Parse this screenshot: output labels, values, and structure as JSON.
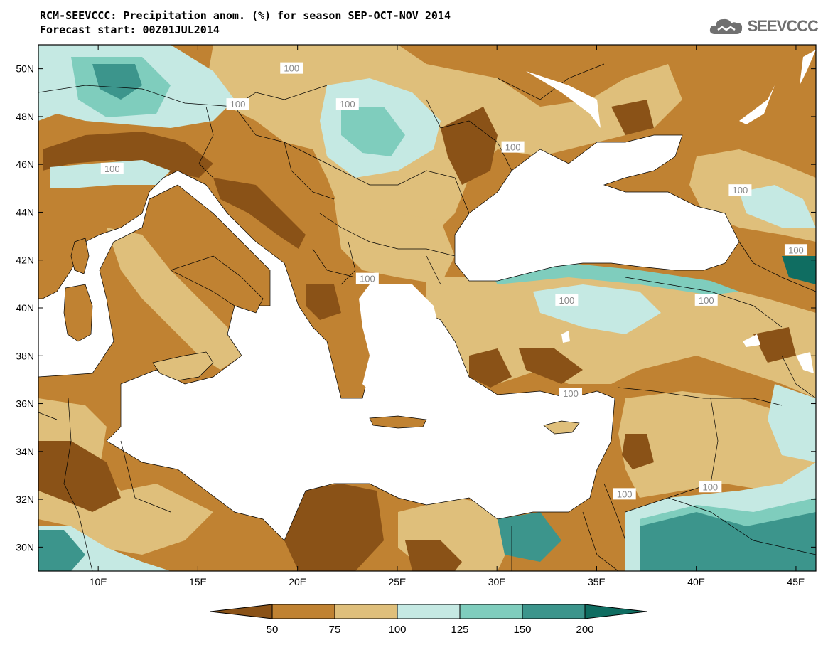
{
  "title": {
    "line1": "RCM-SEEVCCC: Precipitation anom. (%) for season SEP-OCT-NOV 2014",
    "line2": "Forecast start: 00Z01JUL2014"
  },
  "logo": {
    "text": "SEEVCCC",
    "icon": "cloud-icon"
  },
  "map_data": {
    "lon_range": [
      7,
      46
    ],
    "lat_range": [
      29,
      51
    ],
    "lon_ticks": [
      10,
      15,
      20,
      25,
      30,
      35,
      40,
      45
    ],
    "lon_tick_labels": [
      "10E",
      "15E",
      "20E",
      "25E",
      "30E",
      "35E",
      "40E",
      "45E"
    ],
    "lat_ticks": [
      30,
      32,
      34,
      36,
      38,
      40,
      42,
      44,
      46,
      48,
      50
    ],
    "lat_tick_labels": [
      "30N",
      "32N",
      "34N",
      "36N",
      "38N",
      "40N",
      "42N",
      "44N",
      "46N",
      "48N",
      "50N"
    ],
    "contour_labels": [
      {
        "text": "100",
        "lon": 19.7,
        "lat": 50.0
      },
      {
        "text": "100",
        "lon": 17.0,
        "lat": 48.5
      },
      {
        "text": "100",
        "lon": 22.5,
        "lat": 48.5
      },
      {
        "text": "100",
        "lon": 10.7,
        "lat": 45.8
      },
      {
        "text": "100",
        "lon": 30.8,
        "lat": 46.7
      },
      {
        "text": "100",
        "lon": 42.2,
        "lat": 44.9
      },
      {
        "text": "100",
        "lon": 45.0,
        "lat": 42.4
      },
      {
        "text": "100",
        "lon": 23.5,
        "lat": 41.2
      },
      {
        "text": "100",
        "lon": 33.5,
        "lat": 40.3
      },
      {
        "text": "100",
        "lon": 40.5,
        "lat": 40.3
      },
      {
        "text": "100",
        "lon": 33.7,
        "lat": 36.4
      },
      {
        "text": "100",
        "lon": 36.4,
        "lat": 32.2
      },
      {
        "text": "100",
        "lon": 40.7,
        "lat": 32.5
      }
    ]
  },
  "colorbar": {
    "labels": [
      "50",
      "75",
      "100",
      "125",
      "150",
      "200"
    ],
    "colors": [
      "#8a5217",
      "#c08232",
      "#dfbf7b",
      "#c5e9e3",
      "#7fcdbd",
      "#3c958c",
      "#0f6d61"
    ]
  },
  "colors": {
    "dark_brown": "#8a5217",
    "brown": "#c08232",
    "light_brown": "#dfbf7b",
    "light_teal": "#c5e9e3",
    "teal": "#7fcdbd",
    "dark_teal": "#3c958c",
    "darkest_teal": "#0f6d61",
    "sea": "#ffffff"
  }
}
